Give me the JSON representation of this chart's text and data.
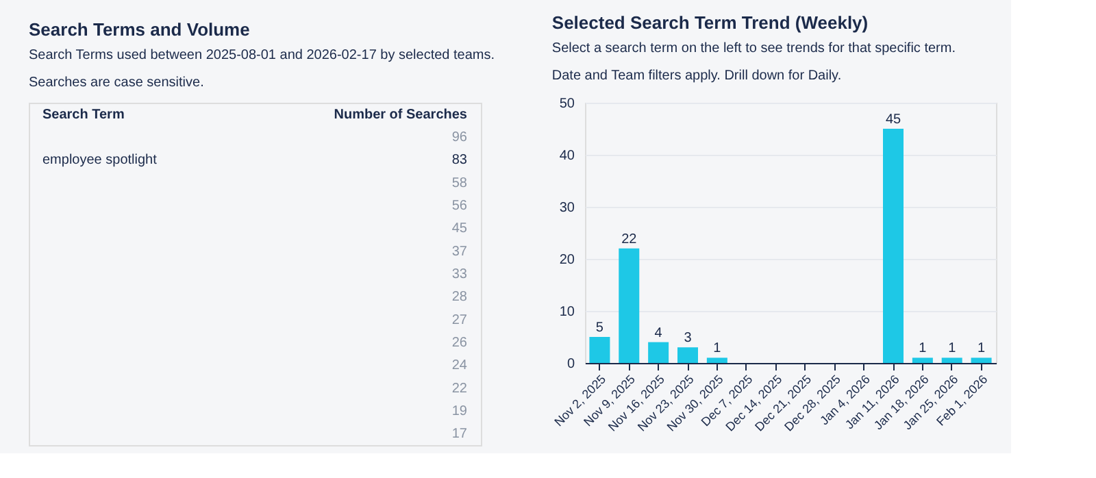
{
  "chart_data": [
    {
      "type": "other",
      "title": "Search Terms and Volume",
      "subtitle": "Search Terms used between 2025-08-01 and 2026-02-17 by selected teams.\nSearches are case sensitive.",
      "annotations": [
        "Search Term",
        "Number of Searches"
      ],
      "categories": [
        null,
        "employee spotlight",
        null,
        null,
        null,
        null,
        null,
        null,
        null,
        null,
        null,
        null,
        null,
        null
      ],
      "values": [
        96,
        83,
        58,
        56,
        45,
        37,
        33,
        28,
        27,
        26,
        24,
        22,
        19,
        17
      ],
      "data_labels": true,
      "colors": [
        "#8a94a3",
        "#1b2a4a",
        "#8a94a3",
        "#8a94a3",
        "#8a94a3",
        "#8a94a3",
        "#8a94a3",
        "#8a94a3",
        "#8a94a3",
        "#8a94a3",
        "#8a94a3",
        "#8a94a3",
        "#8a94a3",
        "#8a94a3"
      ]
    },
    {
      "type": "bar",
      "title": "Selected Search Term Trend (Weekly)",
      "subtitle": "Select a search term on the left to see trends for that specific term.\nDate and Team filters apply. Drill down for Daily.",
      "categories": [
        "Nov 2, 2025",
        "Nov 9, 2025",
        "Nov 16, 2025",
        "Nov 23, 2025",
        "Nov 30, 2025",
        "Dec 7, 2025",
        "Dec 14, 2025",
        "Dec 21, 2025",
        "Dec 28, 2025",
        "Jan 4, 2026",
        "Jan 11, 2026",
        "Jan 18, 2026",
        "Jan 25, 2026",
        "Feb 1, 2026"
      ],
      "values": [
        5,
        22,
        4,
        3,
        1,
        0,
        0,
        0,
        0,
        0,
        45,
        1,
        1,
        1
      ],
      "value_labels": [
        "5",
        "22",
        "4",
        "3",
        "1",
        null,
        null,
        null,
        null,
        null,
        "45",
        "1",
        "1",
        "1"
      ],
      "color": "#1ec8e6",
      "ylim": [
        0,
        50
      ],
      "yticks": [
        0,
        10,
        20,
        30,
        40,
        50
      ],
      "grid": "y"
    }
  ]
}
